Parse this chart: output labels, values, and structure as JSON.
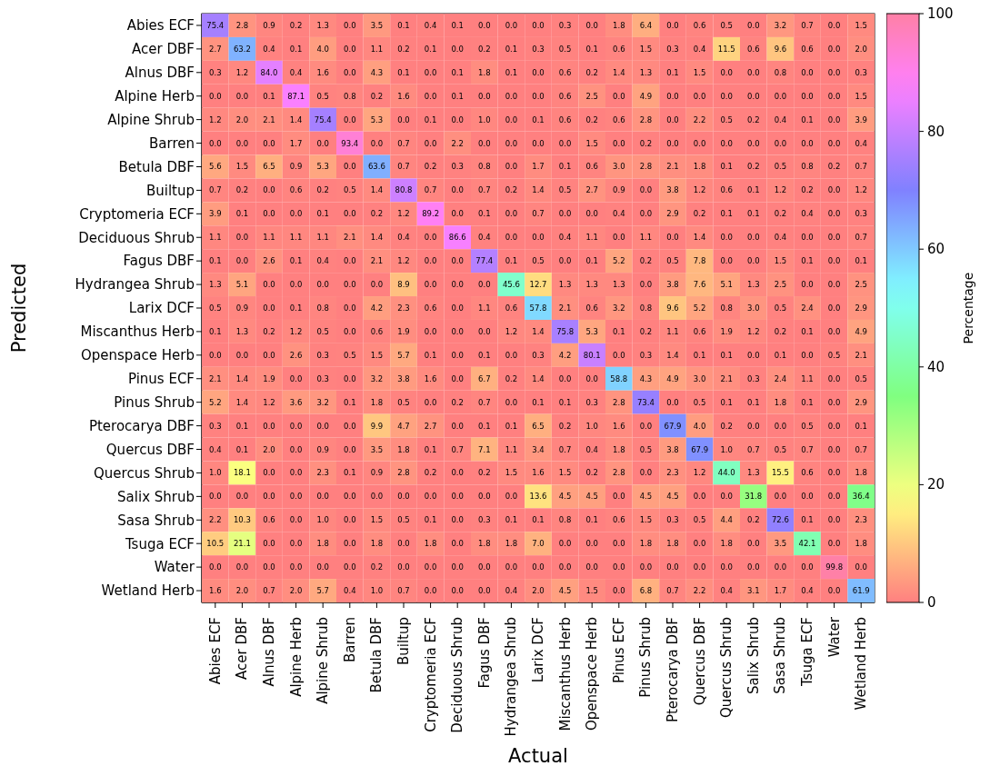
{
  "chart_data": {
    "type": "heatmap",
    "xlabel": "Actual",
    "ylabel": "Predicted",
    "clabel": "Percentage",
    "clim": [
      0,
      100
    ],
    "cticks": [
      0,
      20,
      40,
      60,
      80,
      100
    ],
    "cell_labels": [
      [
        "75.4",
        "2.8",
        "0.9",
        "0.2",
        "1.3",
        "0.0",
        "3.5",
        "0.1",
        "0.4",
        "0.1",
        "0.0",
        "0.0",
        "0.0",
        "0.3",
        "0.0",
        "1.8",
        "6.4",
        "0.0",
        "0.6",
        "0.5",
        "0.0",
        "3.2",
        "0.7",
        "0.0",
        "1.5"
      ],
      [
        "2.7",
        "63.2",
        "0.4",
        "0.1",
        "4.0",
        "0.0",
        "1.1",
        "0.2",
        "0.1",
        "0.0",
        "0.2",
        "0.1",
        "0.3",
        "0.5",
        "0.1",
        "0.6",
        "1.5",
        "0.3",
        "0.4",
        "11.5",
        "0.6",
        "9.6",
        "0.6",
        "0.0",
        "2.0"
      ],
      [
        "0.3",
        "1.2",
        "84.0",
        "0.4",
        "1.6",
        "0.0",
        "4.3",
        "0.1",
        "0.0",
        "0.1",
        "1.8",
        "0.1",
        "0.0",
        "0.6",
        "0.2",
        "1.4",
        "1.3",
        "0.1",
        "1.5",
        "0.0",
        "0.0",
        "0.8",
        "0.0",
        "0.0",
        "0.3"
      ],
      [
        "0.0",
        "0.0",
        "0.1",
        "87.1",
        "0.5",
        "0.8",
        "0.2",
        "1.6",
        "0.0",
        "0.1",
        "0.0",
        "0.0",
        "0.0",
        "0.6",
        "2.5",
        "0.0",
        "4.9",
        "0.0",
        "0.0",
        "0.0",
        "0.0",
        "0.0",
        "0.0",
        "0.0",
        "1.5"
      ],
      [
        "1.2",
        "2.0",
        "2.1",
        "1.4",
        "75.4",
        "0.0",
        "5.3",
        "0.0",
        "0.1",
        "0.0",
        "1.0",
        "0.0",
        "0.1",
        "0.6",
        "0.2",
        "0.6",
        "2.8",
        "0.0",
        "2.2",
        "0.5",
        "0.2",
        "0.4",
        "0.1",
        "0.0",
        "3.9"
      ],
      [
        "0.0",
        "0.0",
        "0.0",
        "1.7",
        "0.0",
        "93.4",
        "0.0",
        "0.7",
        "0.0",
        "2.2",
        "0.0",
        "0.0",
        "0.0",
        "0.0",
        "1.5",
        "0.0",
        "0.2",
        "0.0",
        "0.0",
        "0.0",
        "0.0",
        "0.0",
        "0.0",
        "0.0",
        "0.4"
      ],
      [
        "5.6",
        "1.5",
        "6.5",
        "0.9",
        "5.3",
        "0.0",
        "63.6",
        "0.7",
        "0.2",
        "0.3",
        "0.8",
        "0.0",
        "1.7",
        "0.1",
        "0.6",
        "3.0",
        "2.8",
        "2.1",
        "1.8",
        "0.1",
        "0.2",
        "0.5",
        "0.8",
        "0.2",
        "0.7"
      ],
      [
        "0.7",
        "0.2",
        "0.0",
        "0.6",
        "0.2",
        "0.5",
        "1.4",
        "80.8",
        "0.7",
        "0.0",
        "0.7",
        "0.2",
        "1.4",
        "0.5",
        "2.7",
        "0.9",
        "0.0",
        "3.8",
        "1.2",
        "0.6",
        "0.1",
        "1.2",
        "0.2",
        "0.0",
        "1.2"
      ],
      [
        "3.9",
        "0.1",
        "0.0",
        "0.0",
        "0.1",
        "0.0",
        "0.2",
        "1.2",
        "89.2",
        "0.0",
        "0.1",
        "0.0",
        "0.7",
        "0.0",
        "0.0",
        "0.4",
        "0.0",
        "2.9",
        "0.2",
        "0.1",
        "0.1",
        "0.2",
        "0.4",
        "0.0",
        "0.3"
      ],
      [
        "1.1",
        "0.0",
        "1.1",
        "1.1",
        "1.1",
        "2.1",
        "1.4",
        "0.4",
        "0.0",
        "86.6",
        "0.4",
        "0.0",
        "0.0",
        "0.4",
        "1.1",
        "0.0",
        "1.1",
        "0.0",
        "1.4",
        "0.0",
        "0.0",
        "0.4",
        "0.0",
        "0.0",
        "0.7"
      ],
      [
        "0.1",
        "0.0",
        "2.6",
        "0.1",
        "0.4",
        "0.0",
        "2.1",
        "1.2",
        "0.0",
        "0.0",
        "77.4",
        "0.1",
        "0.5",
        "0.0",
        "0.1",
        "5.2",
        "0.2",
        "0.5",
        "7.8",
        "0.0",
        "0.0",
        "1.5",
        "0.1",
        "0.0",
        "0.1"
      ],
      [
        "1.3",
        "5.1",
        "0.0",
        "0.0",
        "0.0",
        "0.0",
        "0.0",
        "8.9",
        "0.0",
        "0.0",
        "0.0",
        "45.6",
        "12.7",
        "1.3",
        "1.3",
        "1.3",
        "0.0",
        "3.8",
        "7.6",
        "5.1",
        "1.3",
        "2.5",
        "0.0",
        "0.0",
        "2.5"
      ],
      [
        "0.5",
        "0.9",
        "0.0",
        "0.1",
        "0.8",
        "0.0",
        "4.2",
        "2.3",
        "0.6",
        "0.0",
        "1.1",
        "0.6",
        "57.8",
        "2.1",
        "0.6",
        "3.2",
        "0.8",
        "9.6",
        "5.2",
        "0.8",
        "3.0",
        "0.5",
        "2.4",
        "0.0",
        "2.9"
      ],
      [
        "0.1",
        "1.3",
        "0.2",
        "1.2",
        "0.5",
        "0.0",
        "0.6",
        "1.9",
        "0.0",
        "0.0",
        "0.0",
        "1.2",
        "1.4",
        "75.8",
        "5.3",
        "0.1",
        "0.2",
        "1.1",
        "0.6",
        "1.9",
        "1.2",
        "0.2",
        "0.1",
        "0.0",
        "4.9"
      ],
      [
        "0.0",
        "0.0",
        "0.0",
        "2.6",
        "0.3",
        "0.5",
        "1.5",
        "5.7",
        "0.1",
        "0.0",
        "0.1",
        "0.0",
        "0.3",
        "4.2",
        "80.1",
        "0.0",
        "0.3",
        "1.4",
        "0.1",
        "0.1",
        "0.0",
        "0.1",
        "0.0",
        "0.5",
        "2.1"
      ],
      [
        "2.1",
        "1.4",
        "1.9",
        "0.0",
        "0.3",
        "0.0",
        "3.2",
        "3.8",
        "1.6",
        "0.0",
        "6.7",
        "0.2",
        "1.4",
        "0.0",
        "0.0",
        "58.8",
        "4.3",
        "4.9",
        "3.0",
        "2.1",
        "0.3",
        "2.4",
        "1.1",
        "0.0",
        "0.5"
      ],
      [
        "5.2",
        "1.4",
        "1.2",
        "3.6",
        "3.2",
        "0.1",
        "1.8",
        "0.5",
        "0.0",
        "0.2",
        "0.7",
        "0.0",
        "0.1",
        "0.1",
        "0.3",
        "2.8",
        "73.4",
        "0.0",
        "0.5",
        "0.1",
        "0.1",
        "1.8",
        "0.1",
        "0.0",
        "2.9"
      ],
      [
        "0.3",
        "0.1",
        "0.0",
        "0.0",
        "0.0",
        "0.0",
        "9.9",
        "4.7",
        "2.7",
        "0.0",
        "0.1",
        "0.1",
        "6.5",
        "0.2",
        "1.0",
        "1.6",
        "0.0",
        "67.9",
        "4.0",
        "0.2",
        "0.0",
        "0.0",
        "0.5",
        "0.0",
        "0.1"
      ],
      [
        "0.4",
        "0.1",
        "2.0",
        "0.0",
        "0.9",
        "0.0",
        "3.5",
        "1.8",
        "0.1",
        "0.7",
        "7.1",
        "1.1",
        "3.4",
        "0.7",
        "0.4",
        "1.8",
        "0.5",
        "3.8",
        "67.9",
        "1.0",
        "0.7",
        "0.5",
        "0.7",
        "0.0",
        "0.7"
      ],
      [
        "1.0",
        "18.1",
        "0.0",
        "0.0",
        "2.3",
        "0.1",
        "0.9",
        "2.8",
        "0.2",
        "0.0",
        "0.2",
        "1.5",
        "1.6",
        "1.5",
        "0.2",
        "2.8",
        "0.0",
        "2.3",
        "1.2",
        "44.0",
        "1.3",
        "15.5",
        "0.6",
        "0.0",
        "1.8"
      ],
      [
        "0.0",
        "0.0",
        "0.0",
        "0.0",
        "0.0",
        "0.0",
        "0.0",
        "0.0",
        "0.0",
        "0.0",
        "0.0",
        "0.0",
        "13.6",
        "4.5",
        "4.5",
        "0.0",
        "4.5",
        "4.5",
        "0.0",
        "0.0",
        "31.8",
        "0.0",
        "0.0",
        "0.0",
        "36.4"
      ],
      [
        "2.2",
        "10.3",
        "0.6",
        "0.0",
        "1.0",
        "0.0",
        "1.5",
        "0.5",
        "0.1",
        "0.0",
        "0.3",
        "0.1",
        "0.1",
        "0.8",
        "0.1",
        "0.6",
        "1.5",
        "0.3",
        "0.5",
        "4.4",
        "0.2",
        "72.6",
        "0.1",
        "0.0",
        "2.3"
      ],
      [
        "10.5",
        "21.1",
        "0.0",
        "0.0",
        "1.8",
        "0.0",
        "1.8",
        "0.0",
        "1.8",
        "0.0",
        "1.8",
        "1.8",
        "7.0",
        "0.0",
        "0.0",
        "0.0",
        "1.8",
        "1.8",
        "0.0",
        "1.8",
        "0.0",
        "3.5",
        "42.1",
        "0.0",
        "1.8"
      ],
      [
        "0.0",
        "0.0",
        "0.0",
        "0.0",
        "0.0",
        "0.0",
        "0.2",
        "0.0",
        "0.0",
        "0.0",
        "0.0",
        "0.0",
        "0.0",
        "0.0",
        "0.0",
        "0.0",
        "0.0",
        "0.0",
        "0.0",
        "0.0",
        "0.0",
        "0.0",
        "0.0",
        "99.8",
        "0.0"
      ],
      [
        "1.6",
        "2.0",
        "0.7",
        "2.0",
        "5.7",
        "0.4",
        "1.0",
        "0.7",
        "0.0",
        "0.0",
        "0.0",
        "0.4",
        "2.0",
        "4.5",
        "1.5",
        "0.0",
        "6.8",
        "0.7",
        "2.2",
        "0.4",
        "3.1",
        "1.7",
        "0.4",
        "0.0",
        "61.9"
      ]
    ],
    "categories": [
      "Abies ECF",
      "Acer DBF",
      "Alnus DBF",
      "Alpine Herb",
      "Alpine Shrub",
      "Barren",
      "Betula DBF",
      "Builtup",
      "Cryptomeria ECF",
      "Deciduous Shrub",
      "Fagus DBF",
      "Hydrangea Shrub",
      "Larix DCF",
      "Miscanthus Herb",
      "Openspace Herb",
      "Pinus ECF",
      "Pinus Shrub",
      "Pterocarya DBF",
      "Quercus DBF",
      "Quercus Shrub",
      "Salix Shrub",
      "Sasa Shrub",
      "Tsuga ECF",
      "Water",
      "Wetland Herb"
    ],
    "y_categories": [
      "Abies ECF",
      "Acer DBF",
      "Alnus DBF",
      "Alpine Herb",
      "Alpine Shrub",
      "Barren",
      "Betula DBF",
      "Builtup",
      "Cryptomeria ECF",
      "Deciduous Shrub",
      "Fagus DBF",
      "Hydrangea Shrub",
      "Larix DCF",
      "Miscanthus Herb",
      "Openspace Herb",
      "Pinus ECF",
      "Pinus Shrub",
      "Pterocarya DBF",
      "Quercus DBF",
      "Quercus Shrub",
      "Salix Shrub",
      "Sasa Shrub",
      "Tsuga ECF",
      "Water",
      "Wetland Herb"
    ],
    "cells": [
      [
        75.4,
        2.8,
        0.9,
        0.2,
        1.3,
        0.0,
        3.5,
        0.1,
        0.4,
        0.1,
        0.0,
        0.0,
        0.0,
        0.3,
        0.0,
        1.8,
        6.4,
        0.0,
        0.6,
        0.5,
        0.0,
        3.2,
        0.7,
        0.0,
        1.5
      ],
      [
        2.7,
        63.2,
        0.4,
        0.1,
        4.0,
        0.0,
        1.1,
        0.2,
        0.1,
        0.0,
        0.2,
        0.1,
        0.3,
        0.5,
        0.1,
        0.6,
        1.5,
        0.3,
        0.4,
        11.5,
        0.6,
        9.6,
        0.6,
        0.0,
        2.0
      ],
      [
        0.3,
        1.2,
        84.0,
        0.4,
        1.6,
        0.0,
        4.3,
        0.1,
        0.0,
        0.1,
        1.8,
        0.1,
        0.0,
        0.6,
        0.2,
        1.4,
        1.3,
        0.1,
        1.5,
        0.0,
        0.0,
        0.8,
        0.0,
        0.0,
        0.3
      ],
      [
        0.0,
        0.0,
        0.1,
        87.1,
        0.5,
        0.8,
        0.2,
        1.6,
        0.0,
        0.1,
        0.0,
        0.0,
        0.0,
        0.6,
        2.5,
        0.0,
        4.9,
        0.0,
        0.0,
        0.0,
        0.0,
        0.0,
        0.0,
        0.0,
        1.5
      ],
      [
        1.2,
        2.0,
        2.1,
        1.4,
        75.4,
        0.0,
        5.3,
        0.0,
        0.1,
        0.0,
        1.0,
        0.0,
        0.1,
        0.6,
        0.2,
        0.6,
        2.8,
        0.0,
        2.2,
        0.5,
        0.2,
        0.4,
        0.1,
        0.0,
        3.9
      ],
      [
        0.0,
        0.0,
        0.0,
        1.7,
        0.0,
        93.4,
        0.0,
        0.7,
        0.0,
        2.2,
        0.0,
        0.0,
        0.0,
        0.0,
        1.5,
        0.0,
        0.2,
        0.0,
        0.0,
        0.0,
        0.0,
        0.0,
        0.0,
        0.0,
        0.4
      ],
      [
        5.6,
        1.5,
        6.5,
        0.9,
        5.3,
        0.0,
        63.6,
        0.7,
        0.2,
        0.3,
        0.8,
        0.0,
        1.7,
        0.1,
        0.6,
        3.0,
        2.8,
        2.1,
        1.8,
        0.1,
        0.2,
        0.5,
        0.8,
        0.2,
        0.7
      ],
      [
        0.7,
        0.2,
        0.0,
        0.6,
        0.2,
        0.5,
        1.4,
        80.8,
        0.7,
        0.0,
        0.7,
        0.2,
        1.4,
        0.5,
        2.7,
        0.9,
        0.0,
        3.8,
        1.2,
        0.6,
        0.1,
        1.2,
        0.2,
        0.0,
        1.2
      ],
      [
        3.9,
        0.1,
        0.0,
        0.0,
        0.1,
        0.0,
        0.2,
        1.2,
        89.2,
        0.0,
        0.1,
        0.0,
        0.7,
        0.0,
        0.0,
        0.4,
        0.0,
        2.9,
        0.2,
        0.1,
        0.1,
        0.2,
        0.4,
        0.0,
        0.3
      ],
      [
        1.1,
        0.0,
        1.1,
        1.1,
        1.1,
        2.1,
        1.4,
        0.4,
        0.0,
        86.6,
        0.4,
        0.0,
        0.0,
        0.4,
        1.1,
        0.0,
        1.1,
        0.0,
        1.4,
        0.0,
        0.0,
        0.4,
        0.0,
        0.0,
        0.7
      ],
      [
        0.1,
        0.0,
        2.6,
        0.1,
        0.4,
        0.0,
        2.1,
        1.2,
        0.0,
        0.0,
        77.4,
        0.1,
        0.5,
        0.0,
        0.1,
        5.2,
        0.2,
        0.5,
        7.8,
        0.0,
        0.0,
        1.5,
        0.1,
        0.0,
        0.1
      ],
      [
        1.3,
        5.1,
        0.0,
        0.0,
        0.0,
        0.0,
        0.0,
        8.9,
        0.0,
        0.0,
        0.0,
        45.6,
        12.7,
        1.3,
        1.3,
        1.3,
        0.0,
        3.8,
        7.6,
        5.1,
        1.3,
        2.5,
        0.0,
        0.0,
        2.5
      ],
      [
        0.5,
        0.9,
        0.0,
        0.1,
        0.8,
        0.0,
        4.2,
        2.3,
        0.6,
        0.0,
        1.1,
        0.6,
        57.8,
        2.1,
        0.6,
        3.2,
        0.8,
        9.6,
        5.2,
        0.8,
        3.0,
        0.5,
        2.4,
        0.0,
        2.9
      ],
      [
        0.1,
        1.3,
        0.2,
        1.2,
        0.5,
        0.0,
        0.6,
        1.9,
        0.0,
        0.0,
        0.0,
        1.2,
        1.4,
        75.8,
        5.3,
        0.1,
        0.2,
        1.1,
        0.6,
        1.9,
        1.2,
        0.2,
        0.1,
        0.0,
        4.9
      ],
      [
        0.0,
        0.0,
        0.0,
        2.6,
        0.3,
        0.5,
        1.5,
        5.7,
        0.1,
        0.0,
        0.1,
        0.0,
        0.3,
        4.2,
        80.1,
        0.0,
        0.3,
        1.4,
        0.1,
        0.1,
        0.0,
        0.1,
        0.0,
        0.5,
        2.1
      ],
      [
        2.1,
        1.4,
        1.9,
        0.0,
        0.3,
        0.0,
        3.2,
        3.8,
        1.6,
        0.0,
        6.7,
        0.2,
        1.4,
        0.0,
        0.0,
        58.8,
        4.3,
        4.9,
        3.0,
        2.1,
        0.3,
        2.4,
        1.1,
        0.0,
        0.5
      ],
      [
        5.2,
        1.4,
        1.2,
        3.6,
        3.2,
        0.1,
        1.8,
        0.5,
        0.0,
        0.2,
        0.7,
        0.0,
        0.1,
        0.1,
        0.3,
        2.8,
        73.4,
        0.0,
        0.5,
        0.1,
        0.1,
        1.8,
        0.1,
        0.0,
        2.9
      ],
      [
        0.3,
        0.1,
        0.0,
        0.0,
        0.0,
        0.0,
        9.9,
        4.7,
        2.7,
        0.0,
        0.1,
        0.1,
        6.5,
        0.2,
        1.0,
        1.6,
        0.0,
        67.9,
        4.0,
        0.2,
        0.0,
        0.0,
        0.5,
        0.0,
        0.1
      ],
      [
        0.4,
        0.1,
        2.0,
        0.0,
        0.9,
        0.0,
        3.5,
        1.8,
        0.1,
        0.7,
        7.1,
        1.1,
        3.4,
        0.7,
        0.4,
        1.8,
        0.5,
        3.8,
        67.9,
        1.0,
        0.7,
        0.5,
        0.7,
        0.0,
        0.7
      ],
      [
        1.0,
        18.1,
        0.0,
        0.0,
        2.3,
        0.1,
        0.9,
        2.8,
        0.2,
        0.0,
        0.2,
        1.5,
        1.6,
        1.5,
        0.2,
        2.8,
        0.0,
        2.3,
        1.2,
        44.0,
        1.3,
        15.5,
        0.6,
        0.0,
        1.8
      ],
      [
        0.0,
        0.0,
        0.0,
        0.0,
        0.0,
        0.0,
        0.0,
        0.0,
        0.0,
        0.0,
        0.0,
        0.0,
        13.6,
        4.5,
        4.5,
        0.0,
        4.5,
        4.5,
        0.0,
        0.0,
        31.8,
        0.0,
        0.0,
        0.0,
        36.4
      ],
      [
        2.2,
        10.3,
        0.6,
        0.0,
        1.0,
        0.0,
        1.5,
        0.5,
        0.1,
        0.0,
        0.3,
        0.1,
        0.1,
        0.8,
        0.1,
        0.6,
        1.5,
        0.3,
        0.5,
        4.4,
        0.2,
        72.6,
        0.1,
        0.0,
        2.3
      ],
      [
        10.5,
        21.1,
        0.0,
        0.0,
        1.8,
        0.0,
        1.8,
        0.0,
        1.8,
        0.0,
        1.8,
        1.8,
        7.0,
        0.0,
        0.0,
        0.0,
        1.8,
        1.8,
        0.0,
        1.8,
        0.0,
        3.5,
        42.1,
        0.0,
        1.8
      ],
      [
        0.0,
        0.0,
        0.0,
        0.0,
        0.0,
        0.0,
        0.2,
        0.0,
        0.0,
        0.0,
        0.0,
        0.0,
        0.0,
        0.0,
        0.0,
        0.0,
        0.0,
        0.0,
        0.0,
        0.0,
        0.0,
        0.0,
        0.0,
        99.8,
        0.0
      ],
      [
        1.6,
        2.0,
        0.7,
        2.0,
        5.7,
        0.4,
        1.0,
        0.7,
        0.0,
        0.0,
        0.0,
        0.4,
        2.0,
        4.5,
        1.5,
        0.0,
        6.8,
        0.7,
        2.2,
        0.4,
        3.1,
        1.7,
        0.4,
        0.0,
        61.9
      ]
    ]
  }
}
